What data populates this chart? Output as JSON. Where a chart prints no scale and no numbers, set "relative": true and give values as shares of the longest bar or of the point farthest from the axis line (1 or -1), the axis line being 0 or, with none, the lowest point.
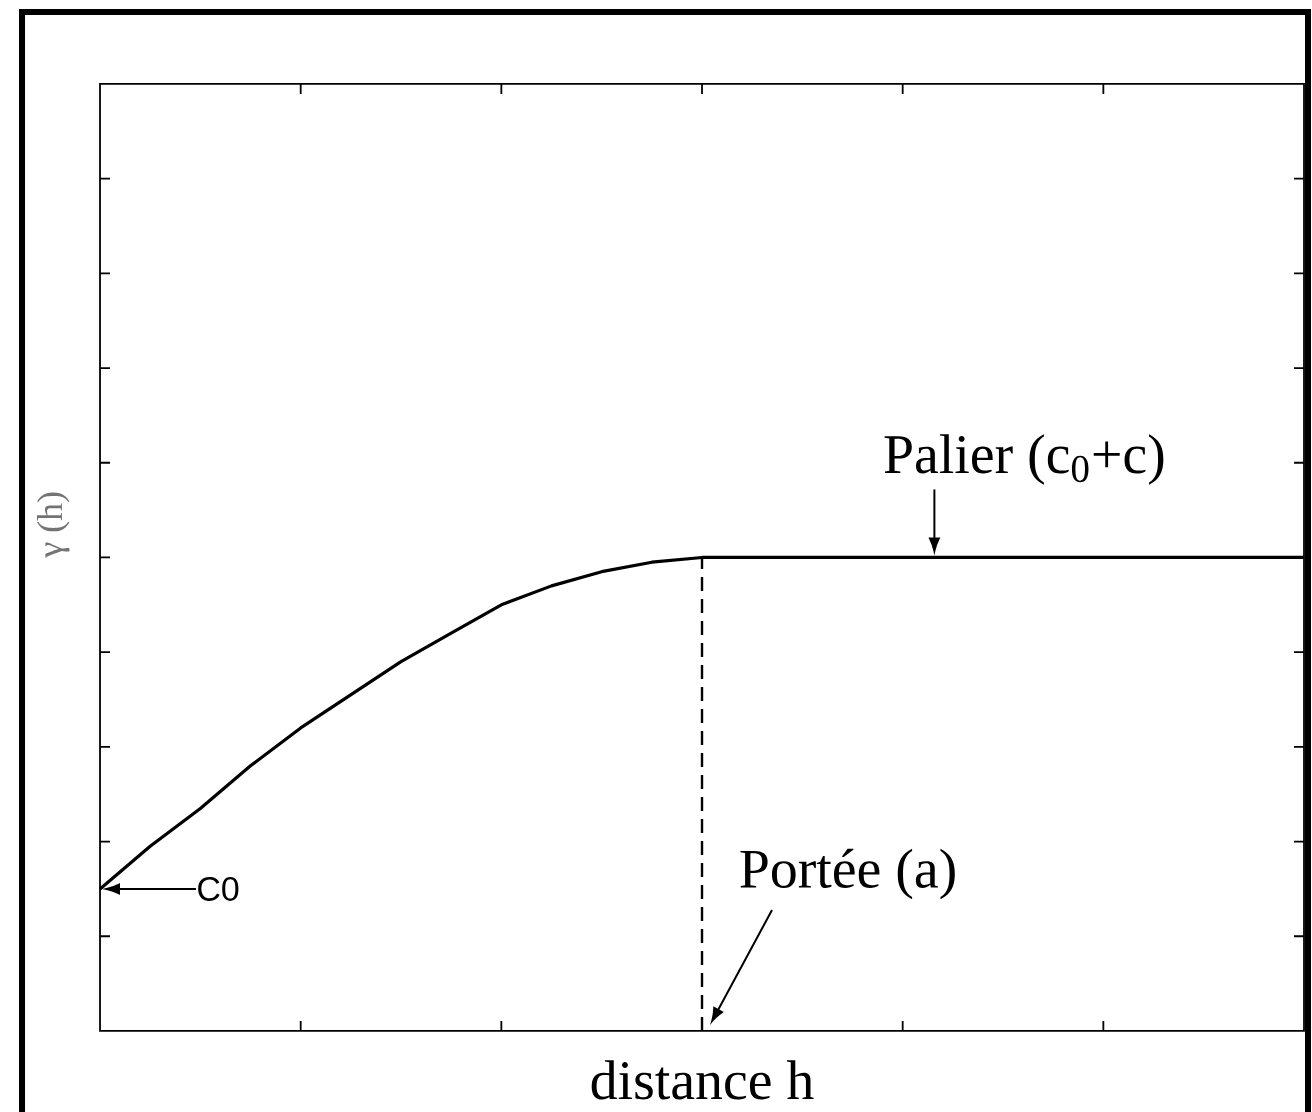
{
  "chart_data": {
    "type": "line",
    "relative": true,
    "xlabel": "distance h",
    "ylabel": "γ (h)",
    "categories": [
      null,
      null,
      null,
      null,
      null,
      null,
      null,
      null,
      null,
      null,
      null,
      null,
      null,
      null,
      null,
      null,
      null,
      null,
      null,
      null,
      null,
      null,
      null,
      null,
      null
    ],
    "values": [
      0.3,
      0.39,
      0.47,
      0.56,
      0.64,
      0.71,
      0.78,
      0.84,
      0.9,
      0.94,
      0.97,
      0.99,
      1.0,
      1.0,
      1.0,
      1.0,
      1.0,
      1.0,
      1.0,
      1.0,
      1.0,
      1.0,
      1.0,
      1.0,
      1.0
    ],
    "color": "#000000",
    "annotations": [
      "C0",
      "Palier (c$_{0}$+c)",
      "Portée (a)"
    ]
  }
}
